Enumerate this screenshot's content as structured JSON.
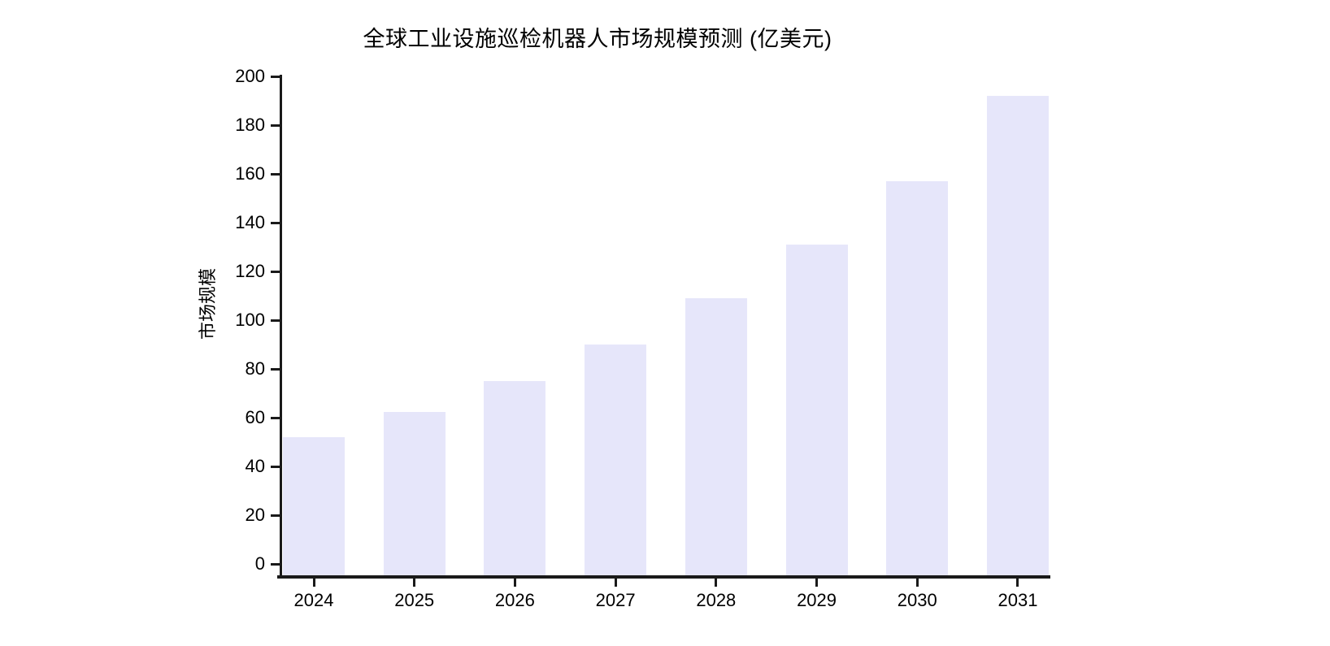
{
  "title": "全球工业设施巡检机器人市场规模预测 (亿美元)",
  "chart_data": {
    "type": "bar",
    "title": "全球工业设施巡检机器人市场规模预测 (亿美元)",
    "xlabel": "",
    "ylabel": "市场规模",
    "unit": "亿美元",
    "categories": [
      "2024",
      "2025",
      "2026",
      "2027",
      "2028",
      "2029",
      "2030",
      "2031"
    ],
    "values": [
      52,
      62.5,
      75,
      90,
      109,
      131,
      157,
      192
    ],
    "ylim": [
      0,
      200
    ],
    "ytick_step": 20,
    "ytick_labels": [
      "0",
      "20",
      "40",
      "60",
      "80",
      "100",
      "120",
      "140",
      "160",
      "180",
      "200"
    ],
    "grid": false,
    "legend_position": "none",
    "bar_color": "#E6E6FA",
    "axis_color": "#1a1a1a",
    "text_color": "#000000",
    "background_color": "#ffffff"
  }
}
